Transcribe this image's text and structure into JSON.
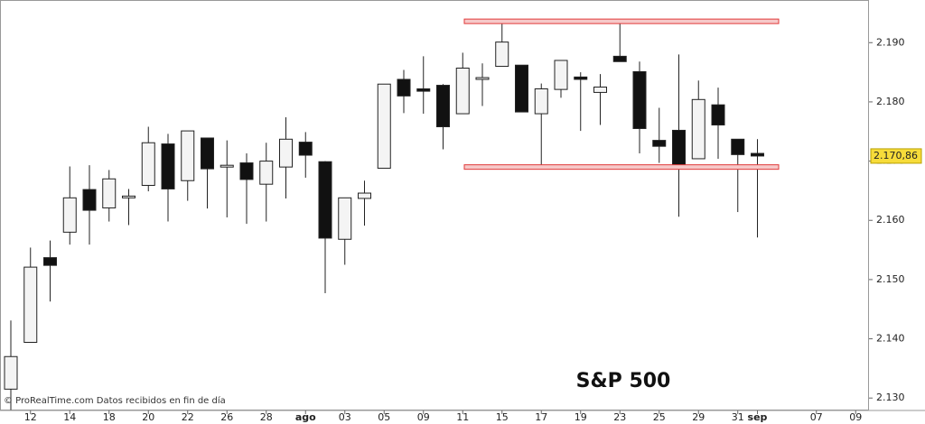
{
  "chart_data": {
    "type": "candlestick",
    "title": "S&P 500",
    "source": "© ProRealTime.com Datos recibidos en fin de día",
    "categories": [
      null,
      "12",
      null,
      "14",
      null,
      "18",
      null,
      "20",
      null,
      "22",
      null,
      "26",
      null,
      "28",
      null,
      "ago",
      null,
      "03",
      null,
      "05",
      null,
      "09",
      null,
      "11",
      null,
      "15",
      null,
      "17",
      null,
      "19",
      null,
      "23",
      null,
      "25",
      null,
      "29",
      null,
      "31",
      "sep",
      null,
      null,
      "07",
      null,
      "09"
    ],
    "open": [
      2131.5,
      2139.4,
      2153.7,
      2158.0,
      2165.2,
      2162.1,
      2163.8,
      2165.9,
      2172.9,
      2166.7,
      2173.9,
      2169.0,
      2169.7,
      2166.1,
      2169.0,
      2173.2,
      2169.9,
      2156.8,
      2163.7,
      2168.8,
      2183.8,
      2182.2,
      2182.8,
      2178.0,
      2183.8,
      2186.0,
      2186.2,
      2178.0,
      2182.1,
      2184.2,
      2181.6,
      2187.7,
      2185.1,
      2173.5,
      2175.2,
      2170.4,
      2179.5,
      2173.7,
      2171.3,
      null,
      null,
      null,
      null,
      null
    ],
    "high": [
      2143.1,
      2155.4,
      2156.6,
      2169.1,
      2169.3,
      2168.5,
      2165.3,
      2175.8,
      2174.6,
      2175.1,
      2173.9,
      2173.5,
      2171.3,
      2173.1,
      2177.4,
      2174.9,
      2170.0,
      2163.8,
      2166.7,
      2183.0,
      2185.4,
      2187.7,
      2183.0,
      2188.3,
      2186.5,
      2193.8,
      2186.2,
      2183.1,
      2187.0,
      2185.0,
      2184.7,
      2193.2,
      2186.8,
      2179.0,
      2188.0,
      2183.6,
      2182.4,
      2173.7,
      2173.7,
      null,
      null,
      null,
      null,
      null
    ],
    "low": [
      2128.0,
      2139.4,
      2146.3,
      2155.9,
      2155.9,
      2159.8,
      2159.2,
      2164.9,
      2159.8,
      2163.3,
      2162.0,
      2160.5,
      2159.4,
      2159.8,
      2163.7,
      2167.2,
      2147.7,
      2152.5,
      2159.1,
      2168.8,
      2178.1,
      2178.0,
      2172.0,
      2178.0,
      2179.3,
      2186.0,
      2178.3,
      2168.8,
      2180.7,
      2175.1,
      2176.1,
      2186.8,
      2171.3,
      2169.7,
      2160.6,
      2170.4,
      2170.4,
      2161.4,
      2157.1,
      null,
      null,
      null,
      null,
      null
    ],
    "close": [
      2137.0,
      2152.1,
      2152.4,
      2163.8,
      2161.7,
      2167.0,
      2164.1,
      2173.1,
      2165.3,
      2175.1,
      2168.7,
      2169.3,
      2166.9,
      2170.0,
      2173.7,
      2171.0,
      2157.0,
      2163.8,
      2164.6,
      2183.0,
      2181.0,
      2181.8,
      2175.8,
      2185.7,
      2184.1,
      2190.1,
      2178.3,
      2182.2,
      2187.0,
      2183.8,
      2182.5,
      2186.8,
      2175.5,
      2172.5,
      2169.3,
      2180.4,
      2176.1,
      2171.1,
      2170.86,
      null,
      null,
      null,
      null,
      null
    ],
    "up_color": "#f4f4f4",
    "down_color": "#111111",
    "ylim": [
      2127.9,
      2197.2
    ],
    "yticks": [
      {
        "value": 2130,
        "label": "2.130"
      },
      {
        "value": 2140,
        "label": "2.140"
      },
      {
        "value": 2150,
        "label": "2.150"
      },
      {
        "value": 2160,
        "label": "2.160"
      },
      {
        "value": 2170,
        "label": "2.170"
      },
      {
        "value": 2180,
        "label": "2.180"
      },
      {
        "value": 2190,
        "label": "2.190"
      }
    ],
    "last_price": {
      "value": 2170.86,
      "label": "2.170,86"
    },
    "levels": [
      2193.6,
      2169.0
    ],
    "level_color": "#e03a3a"
  }
}
